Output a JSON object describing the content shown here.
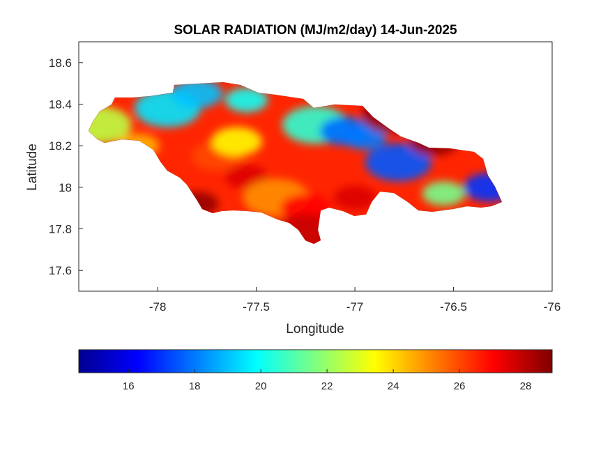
{
  "title": "SOLAR RADIATION (MJ/m2/day) 14-Jun-2025",
  "map": {
    "xlabel": "Longitude",
    "ylabel": "Latitude",
    "xlim": [
      -78.4,
      -76
    ],
    "ylim": [
      17.5,
      18.7
    ],
    "xticks": [
      -78,
      -77.5,
      -77,
      -76.5,
      -76
    ],
    "yticks": [
      17.6,
      17.8,
      18,
      18.2,
      18.4,
      18.6
    ],
    "region": "Jamaica"
  },
  "colorbar": {
    "range": [
      14.5,
      28.8
    ],
    "ticks": [
      16,
      18,
      20,
      22,
      24,
      26,
      28
    ],
    "colormap": [
      "#00008f",
      "#0000ff",
      "#00ffff",
      "#ffff00",
      "#ff0000",
      "#800000"
    ]
  },
  "chart_data": {
    "type": "heatmap",
    "title": "SOLAR RADIATION (MJ/m2/day) 14-Jun-2025",
    "xlabel": "Longitude",
    "ylabel": "Latitude",
    "xlim": [
      -78.4,
      -76
    ],
    "ylim": [
      17.5,
      18.7
    ],
    "value_range": [
      14.5,
      28.8
    ],
    "grid": false,
    "legend": "colorbar-bottom",
    "zones": [
      {
        "lon": -77.95,
        "lat": 18.38,
        "value": 19.5
      },
      {
        "lon": -77.8,
        "lat": 18.45,
        "value": 19.0
      },
      {
        "lon": -77.55,
        "lat": 18.42,
        "value": 20.0
      },
      {
        "lon": -77.2,
        "lat": 18.3,
        "value": 20.5
      },
      {
        "lon": -77.05,
        "lat": 18.27,
        "value": 17.8
      },
      {
        "lon": -76.95,
        "lat": 18.24,
        "value": 18.0
      },
      {
        "lon": -76.78,
        "lat": 18.12,
        "value": 17.5
      },
      {
        "lon": -76.32,
        "lat": 18.0,
        "value": 17.0
      },
      {
        "lon": -76.55,
        "lat": 17.97,
        "value": 21.5
      },
      {
        "lon": -78.3,
        "lat": 18.3,
        "value": 22.5
      },
      {
        "lon": -77.7,
        "lat": 18.15,
        "value": 26.0
      },
      {
        "lon": -77.55,
        "lat": 18.05,
        "value": 27.5
      },
      {
        "lon": -77.4,
        "lat": 17.95,
        "value": 25.0
      },
      {
        "lon": -77.25,
        "lat": 17.9,
        "value": 27.0
      },
      {
        "lon": -77.0,
        "lat": 17.95,
        "value": 27.5
      },
      {
        "lon": -76.8,
        "lat": 18.35,
        "value": 28.5
      },
      {
        "lon": -76.6,
        "lat": 18.22,
        "value": 28.5
      },
      {
        "lon": -77.8,
        "lat": 17.92,
        "value": 28.5
      },
      {
        "lon": -77.25,
        "lat": 17.78,
        "value": 27.8
      },
      {
        "lon": -77.6,
        "lat": 18.22,
        "value": 23.5
      },
      {
        "lon": -78.1,
        "lat": 18.2,
        "value": 24.5
      }
    ]
  }
}
